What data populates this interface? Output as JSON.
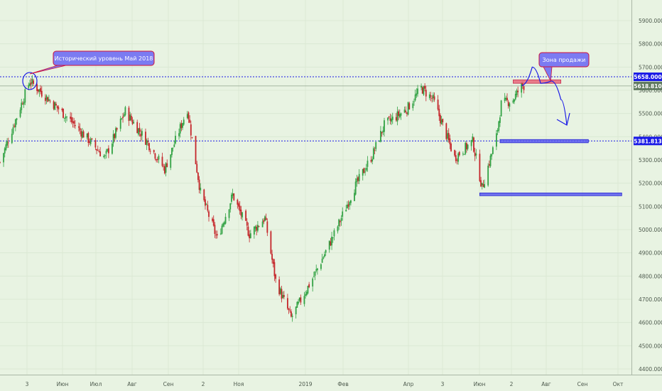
{
  "chart_data": {
    "type": "candlestick",
    "ylim": [
      4350,
      5980
    ],
    "grid": true,
    "y_ticks": [
      "5900.000",
      "5800.000",
      "5700.000",
      "5600.000",
      "5500.000",
      "5400.000",
      "5300.000",
      "5200.000",
      "5100.000",
      "5000.000",
      "4900.000",
      "4800.000",
      "4700.000",
      "4600.000",
      "4500.000",
      "4400.000"
    ],
    "x_ticks": [
      "3",
      "Июн",
      "Июл",
      "Авг",
      "Сен",
      "2",
      "Ноя",
      "2019",
      "Фев",
      "Апр",
      "3",
      "Июн",
      "2",
      "Авг",
      "Сен",
      "Окт"
    ],
    "colors": {
      "up": "#32a244",
      "down": "#c5262b",
      "level": "#1a1ae6",
      "callout": "#7b7bf2",
      "callout_border": "#d0103a"
    },
    "price_labels": [
      {
        "text": "5658.000",
        "value": 5658,
        "color": "#1a1ae6"
      },
      {
        "text": "5618.810",
        "value": 5618.81,
        "color": "#607a60"
      },
      {
        "text": "5381.813",
        "value": 5381.813,
        "color": "#1a1ae6"
      }
    ],
    "levels": [
      5658,
      5381.813,
      5618.81
    ],
    "zones": [
      {
        "from_date": "2019-07-01",
        "to_date": "2019-08-10",
        "y1": 5645,
        "y2": 5630,
        "color": "#e8667a"
      },
      {
        "from_date": "2019-06-20",
        "to_date": "2019-09-02",
        "y1": 5388,
        "y2": 5374,
        "color": "#5a5af0"
      },
      {
        "from_date": "2019-06-03",
        "to_date": "2019-09-30",
        "y1": 5158,
        "y2": 5146,
        "color": "#5a5af0"
      }
    ],
    "annotations": [
      {
        "text": "Исторический уровень Май 2018",
        "date": "2018-05-22",
        "value": 5640
      },
      {
        "text": "Зона продажи",
        "date": "2019-08-05",
        "value": 5640
      }
    ],
    "anchors": [
      {
        "date": "2018-04-27",
        "value": 5290
      },
      {
        "date": "2018-05-22",
        "value": 5640
      },
      {
        "date": "2018-06-27",
        "value": 5460
      },
      {
        "date": "2018-07-24",
        "value": 5310
      },
      {
        "date": "2018-08-10",
        "value": 5510
      },
      {
        "date": "2018-08-28",
        "value": 5380
      },
      {
        "date": "2018-09-12",
        "value": 5260
      },
      {
        "date": "2018-10-01",
        "value": 5520
      },
      {
        "date": "2018-10-12",
        "value": 5160
      },
      {
        "date": "2018-10-26",
        "value": 4960
      },
      {
        "date": "2018-11-08",
        "value": 5150
      },
      {
        "date": "2018-11-22",
        "value": 4980
      },
      {
        "date": "2018-12-05",
        "value": 5050
      },
      {
        "date": "2018-12-14",
        "value": 4780
      },
      {
        "date": "2018-12-27",
        "value": 4620
      },
      {
        "date": "2019-01-15",
        "value": 4800
      },
      {
        "date": "2019-02-01",
        "value": 4980
      },
      {
        "date": "2019-02-18",
        "value": 5180
      },
      {
        "date": "2019-03-05",
        "value": 5320
      },
      {
        "date": "2019-03-15",
        "value": 5450
      },
      {
        "date": "2019-04-03",
        "value": 5520
      },
      {
        "date": "2019-04-15",
        "value": 5610
      },
      {
        "date": "2019-04-25",
        "value": 5560
      },
      {
        "date": "2019-05-13",
        "value": 5310
      },
      {
        "date": "2019-05-28",
        "value": 5380
      },
      {
        "date": "2019-06-05",
        "value": 5180
      },
      {
        "date": "2019-06-17",
        "value": 5400
      },
      {
        "date": "2019-06-21",
        "value": 5540
      },
      {
        "date": "2019-07-01",
        "value": 5560
      },
      {
        "date": "2019-07-08",
        "value": 5620
      }
    ]
  }
}
